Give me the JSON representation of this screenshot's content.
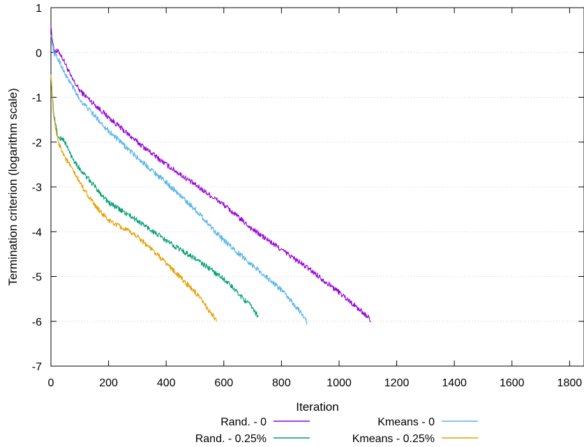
{
  "chart_data": {
    "type": "line",
    "title": "",
    "xlabel": "Iteration",
    "ylabel": "Termination criterion (logarithm scale)",
    "xlim": [
      0,
      1850
    ],
    "ylim": [
      -7,
      1
    ],
    "xticks": [
      0,
      200,
      400,
      600,
      800,
      1000,
      1200,
      1400,
      1600,
      1800
    ],
    "yticks": [
      1,
      0,
      -1,
      -2,
      -3,
      -4,
      -5,
      -6,
      -7
    ],
    "grid": "horizontal dotted",
    "legend_position": "bottom, two columns",
    "series": [
      {
        "name": "Rand. - 0",
        "color": "#9400d3",
        "points": [
          [
            0,
            0.6
          ],
          [
            5,
            0.3
          ],
          [
            10,
            0.05
          ],
          [
            30,
            0.0
          ],
          [
            50,
            -0.25
          ],
          [
            70,
            -0.55
          ],
          [
            100,
            -0.85
          ],
          [
            200,
            -1.45
          ],
          [
            300,
            -2.0
          ],
          [
            400,
            -2.5
          ],
          [
            500,
            -2.95
          ],
          [
            600,
            -3.4
          ],
          [
            700,
            -3.95
          ],
          [
            800,
            -4.4
          ],
          [
            900,
            -4.85
          ],
          [
            1000,
            -5.35
          ],
          [
            1100,
            -5.9
          ],
          [
            1110,
            -6.0
          ]
        ]
      },
      {
        "name": "Kmeans - 0",
        "color": "#56b4e9",
        "points": [
          [
            0,
            0.4
          ],
          [
            10,
            0.0
          ],
          [
            30,
            -0.2
          ],
          [
            50,
            -0.5
          ],
          [
            70,
            -0.7
          ],
          [
            100,
            -1.05
          ],
          [
            200,
            -1.75
          ],
          [
            300,
            -2.35
          ],
          [
            400,
            -2.9
          ],
          [
            500,
            -3.5
          ],
          [
            600,
            -4.2
          ],
          [
            700,
            -4.75
          ],
          [
            800,
            -5.3
          ],
          [
            880,
            -5.9
          ],
          [
            890,
            -6.05
          ]
        ]
      },
      {
        "name": "Rand. - 0.25%",
        "color": "#009e73",
        "points": [
          [
            0,
            -0.5
          ],
          [
            10,
            -1.4
          ],
          [
            25,
            -1.9
          ],
          [
            45,
            -1.95
          ],
          [
            70,
            -2.3
          ],
          [
            100,
            -2.6
          ],
          [
            200,
            -3.35
          ],
          [
            300,
            -3.75
          ],
          [
            400,
            -4.2
          ],
          [
            500,
            -4.6
          ],
          [
            600,
            -5.05
          ],
          [
            700,
            -5.7
          ],
          [
            720,
            -5.9
          ]
        ]
      },
      {
        "name": "Kmeans - 0.25%",
        "color": "#e69f00",
        "points": [
          [
            0,
            -0.5
          ],
          [
            10,
            -1.5
          ],
          [
            25,
            -2.0
          ],
          [
            50,
            -2.35
          ],
          [
            100,
            -2.9
          ],
          [
            150,
            -3.4
          ],
          [
            200,
            -3.75
          ],
          [
            300,
            -4.1
          ],
          [
            400,
            -4.7
          ],
          [
            500,
            -5.35
          ],
          [
            560,
            -5.85
          ],
          [
            575,
            -6.0
          ]
        ]
      }
    ]
  }
}
